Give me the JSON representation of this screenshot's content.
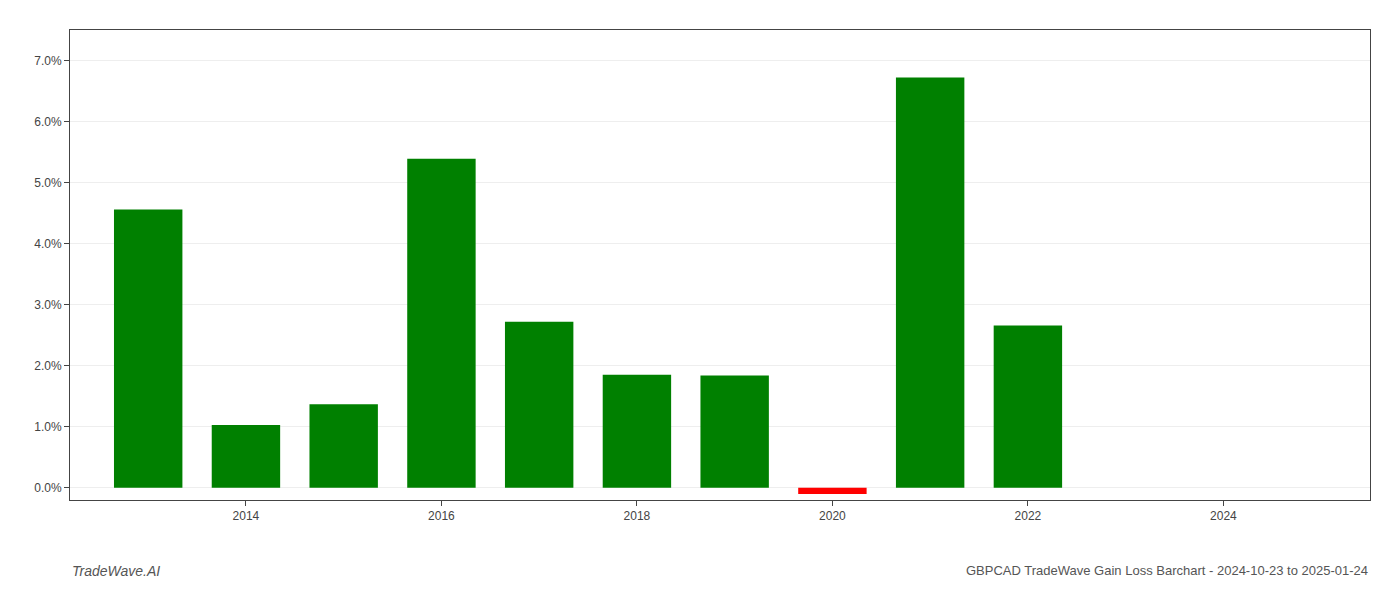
{
  "chart_data": {
    "type": "bar",
    "title": "GBPCAD TradeWave Gain Loss Barchart - 2024-10-23 to 2025-01-24",
    "annotations": [
      "TradeWave.AI"
    ],
    "x": [
      2013,
      2014,
      2015,
      2016,
      2017,
      2018,
      2019,
      2020,
      2021,
      2022
    ],
    "values": [
      0.0456,
      0.0103,
      0.0137,
      0.0539,
      0.0272,
      0.0185,
      0.0184,
      -0.001,
      0.0672,
      0.0266
    ],
    "colors": [
      "#008000",
      "#008000",
      "#008000",
      "#008000",
      "#008000",
      "#008000",
      "#008000",
      "#ff0000",
      "#008000",
      "#008000"
    ],
    "xlim": [
      2012.2,
      2025.5
    ],
    "xticks": [
      2014,
      2016,
      2018,
      2020,
      2022,
      2024
    ],
    "ylim": [
      -0.002,
      0.075
    ],
    "yticks": [
      {
        "value": 0.0,
        "label": "0.0%"
      },
      {
        "value": 0.01,
        "label": "1.0%"
      },
      {
        "value": 0.02,
        "label": "2.0%"
      },
      {
        "value": 0.03,
        "label": "3.0%"
      },
      {
        "value": 0.04,
        "label": "4.0%"
      },
      {
        "value": 0.05,
        "label": "5.0%"
      },
      {
        "value": 0.06,
        "label": "6.0%"
      },
      {
        "value": 0.07,
        "label": "7.0%"
      }
    ],
    "grid": true
  }
}
